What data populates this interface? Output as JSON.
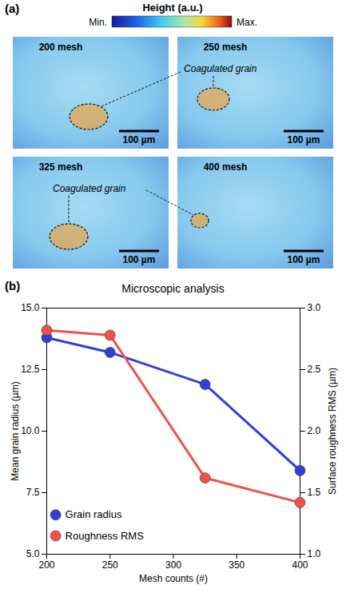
{
  "panel_a": {
    "label": "(a)",
    "colorbar": {
      "title": "Height (a.u.)",
      "min_label": "Min.",
      "max_label": "Max."
    },
    "images": [
      {
        "title": "200 mesh",
        "scalebar": "100 µm"
      },
      {
        "title": "250 mesh",
        "scalebar": "100 µm",
        "annotation": "Coagulated grain"
      },
      {
        "title": "325 mesh",
        "scalebar": "100 µm",
        "annotation": "Coagulated grain"
      },
      {
        "title": "400 mesh",
        "scalebar": "100 µm"
      }
    ]
  },
  "chart_data": {
    "type": "line",
    "panel_label": "(b)",
    "title": "Microscopic analysis",
    "x_label": "Mesh counts (#)",
    "y_label": "Mean grain radius (µm)",
    "y2_label": "Surface roughness RMS (µm)",
    "x": [
      200,
      250,
      325,
      400
    ],
    "xlim": [
      200,
      400
    ],
    "xticks": [
      200,
      250,
      300,
      350,
      400
    ],
    "ylim": [
      5,
      15
    ],
    "yticks": [
      {
        "value": 5,
        "label": "5.0"
      },
      {
        "value": 7.5,
        "label": "7.5"
      },
      {
        "value": 10,
        "label": "10.0"
      },
      {
        "value": 12.5,
        "label": "12.5"
      },
      {
        "value": 15,
        "label": "15.0"
      }
    ],
    "y2lim": [
      1,
      3
    ],
    "y2ticks": [
      {
        "value": 1,
        "label": "1.0"
      },
      {
        "value": 1.5,
        "label": "1.5"
      },
      {
        "value": 2,
        "label": "2.0"
      },
      {
        "value": 2.5,
        "label": "2.5"
      },
      {
        "value": 3,
        "label": "3.0"
      }
    ],
    "series": [
      {
        "name": "Grain radius",
        "color": "#2f3fd6",
        "marker": "circle",
        "values": [
          13.8,
          13.2,
          11.9,
          8.4
        ]
      },
      {
        "name": "Roughness RMS",
        "color": "#f0524a",
        "marker": "circle",
        "axis": "y2",
        "values": [
          2.82,
          2.78,
          1.62,
          1.42
        ]
      }
    ],
    "legend": "lower left",
    "grid": false
  }
}
